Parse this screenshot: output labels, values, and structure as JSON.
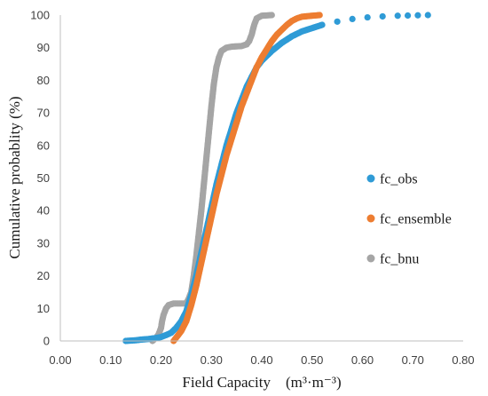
{
  "chart_data": {
    "type": "scatter",
    "title": "",
    "xlabel": "Field Capacity　(m³·m⁻³)",
    "ylabel": "Cumulative probablity (%)",
    "xlim": [
      0,
      0.8
    ],
    "ylim": [
      0,
      100
    ],
    "xticks": [
      "0.00",
      "0.10",
      "0.20",
      "0.30",
      "0.40",
      "0.50",
      "0.60",
      "0.70",
      "0.80"
    ],
    "yticks": [
      "0",
      "10",
      "20",
      "30",
      "40",
      "50",
      "60",
      "70",
      "80",
      "90",
      "100"
    ],
    "grid": false,
    "legend_position": "right",
    "series": [
      {
        "name": "fc_bnu",
        "color": "#a5a5a5",
        "points": [
          [
            0.183,
            0
          ],
          [
            0.19,
            1
          ],
          [
            0.195,
            2
          ],
          [
            0.2,
            4
          ],
          [
            0.202,
            6
          ],
          [
            0.205,
            8
          ],
          [
            0.21,
            10
          ],
          [
            0.215,
            11
          ],
          [
            0.225,
            11.5
          ],
          [
            0.24,
            11.5
          ],
          [
            0.25,
            11.5
          ],
          [
            0.255,
            13
          ],
          [
            0.26,
            15
          ],
          [
            0.265,
            20
          ],
          [
            0.27,
            26
          ],
          [
            0.275,
            33
          ],
          [
            0.28,
            40
          ],
          [
            0.285,
            48
          ],
          [
            0.29,
            56
          ],
          [
            0.295,
            64
          ],
          [
            0.3,
            72
          ],
          [
            0.305,
            79
          ],
          [
            0.31,
            84
          ],
          [
            0.315,
            87
          ],
          [
            0.32,
            89
          ],
          [
            0.33,
            90
          ],
          [
            0.34,
            90.3
          ],
          [
            0.36,
            90.5
          ],
          [
            0.37,
            91
          ],
          [
            0.375,
            92
          ],
          [
            0.38,
            94
          ],
          [
            0.385,
            97
          ],
          [
            0.39,
            99
          ],
          [
            0.4,
            99.8
          ],
          [
            0.42,
            100
          ]
        ]
      },
      {
        "name": "fc_obs",
        "color": "#2f9bd6",
        "points": [
          [
            0.13,
            0
          ],
          [
            0.14,
            0.1
          ],
          [
            0.15,
            0.2
          ],
          [
            0.16,
            0.4
          ],
          [
            0.175,
            0.6
          ],
          [
            0.19,
            0.9
          ],
          [
            0.2,
            1.2
          ],
          [
            0.21,
            1.8
          ],
          [
            0.22,
            2.5
          ],
          [
            0.23,
            4
          ],
          [
            0.24,
            6
          ],
          [
            0.25,
            9
          ],
          [
            0.26,
            14
          ],
          [
            0.27,
            20
          ],
          [
            0.28,
            27
          ],
          [
            0.29,
            34
          ],
          [
            0.3,
            41
          ],
          [
            0.31,
            48
          ],
          [
            0.32,
            54
          ],
          [
            0.33,
            60
          ],
          [
            0.34,
            65
          ],
          [
            0.35,
            70
          ],
          [
            0.36,
            74
          ],
          [
            0.37,
            78
          ],
          [
            0.38,
            81
          ],
          [
            0.39,
            84
          ],
          [
            0.4,
            86
          ],
          [
            0.42,
            89
          ],
          [
            0.44,
            91.5
          ],
          [
            0.46,
            93.5
          ],
          [
            0.48,
            95
          ],
          [
            0.5,
            96
          ],
          [
            0.52,
            97
          ],
          [
            0.55,
            98
          ],
          [
            0.58,
            98.8
          ],
          [
            0.61,
            99.3
          ],
          [
            0.64,
            99.6
          ],
          [
            0.67,
            99.8
          ],
          [
            0.73,
            100
          ]
        ]
      },
      {
        "name": "fc_ensemble",
        "color": "#ed7d31",
        "points": [
          [
            0.225,
            0
          ],
          [
            0.23,
            1
          ],
          [
            0.24,
            3
          ],
          [
            0.25,
            6
          ],
          [
            0.26,
            11
          ],
          [
            0.27,
            17
          ],
          [
            0.28,
            24
          ],
          [
            0.29,
            31
          ],
          [
            0.3,
            38
          ],
          [
            0.31,
            45
          ],
          [
            0.32,
            51
          ],
          [
            0.33,
            57
          ],
          [
            0.34,
            62
          ],
          [
            0.35,
            67
          ],
          [
            0.36,
            72
          ],
          [
            0.37,
            76
          ],
          [
            0.38,
            80
          ],
          [
            0.39,
            84
          ],
          [
            0.4,
            87
          ],
          [
            0.41,
            89.5
          ],
          [
            0.42,
            92
          ],
          [
            0.43,
            94
          ],
          [
            0.44,
            95.5
          ],
          [
            0.45,
            97
          ],
          [
            0.46,
            98.2
          ],
          [
            0.47,
            99
          ],
          [
            0.48,
            99.5
          ],
          [
            0.5,
            99.8
          ],
          [
            0.515,
            100
          ]
        ]
      }
    ]
  }
}
